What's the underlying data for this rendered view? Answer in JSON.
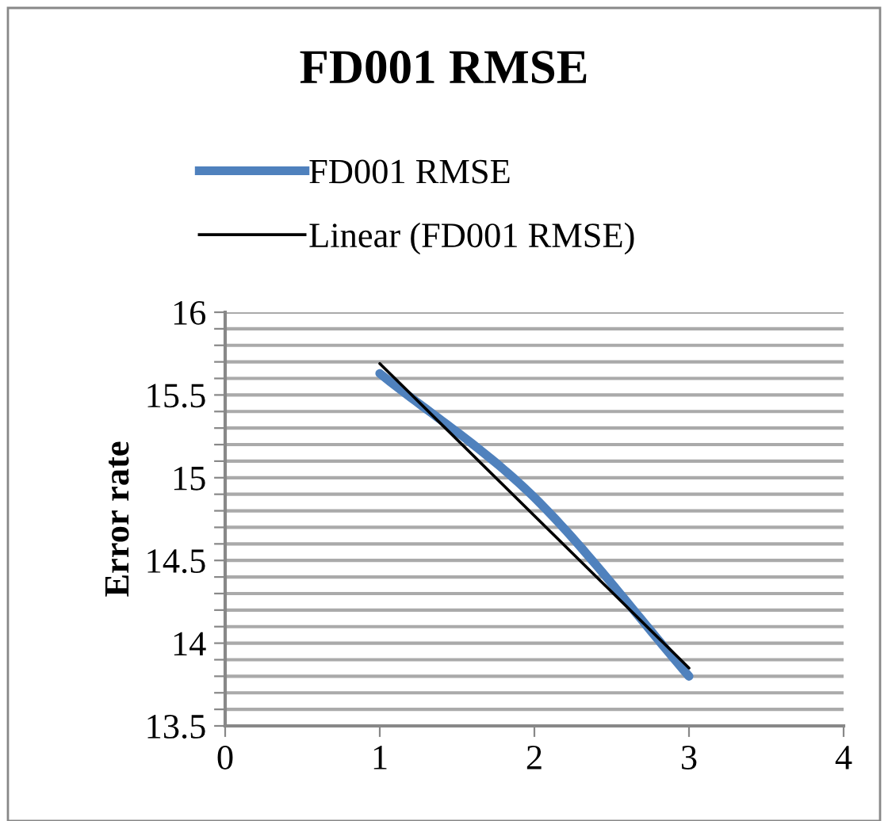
{
  "chart_data": {
    "type": "line",
    "title": "FD001 RMSE",
    "ylabel": "Error rate",
    "series": [
      {
        "name": "FD001 RMSE",
        "color": "#4f81bd",
        "x": [
          1,
          2,
          3
        ],
        "values": [
          15.63,
          14.88,
          13.8
        ]
      },
      {
        "name": "Linear (FD001 RMSE)",
        "color": "#000000",
        "x": [
          1,
          3
        ],
        "values": [
          15.69,
          13.85
        ]
      }
    ],
    "xlim": [
      0,
      4
    ],
    "xticks": [
      0,
      1,
      2,
      3,
      4
    ],
    "ylim": [
      13.5,
      16
    ],
    "yticks": [
      13.5,
      {
        "value": 13.6,
        "label": null
      },
      {
        "value": 13.7,
        "label": null
      },
      {
        "value": 13.8,
        "label": null
      },
      {
        "value": 13.9,
        "label": null
      },
      14,
      {
        "value": 14.1,
        "label": null
      },
      {
        "value": 14.2,
        "label": null
      },
      {
        "value": 14.3,
        "label": null
      },
      {
        "value": 14.4,
        "label": null
      },
      14.5,
      {
        "value": 14.6,
        "label": null
      },
      {
        "value": 14.7,
        "label": null
      },
      {
        "value": 14.8,
        "label": null
      },
      {
        "value": 14.9,
        "label": null
      },
      15,
      {
        "value": 15.1,
        "label": null
      },
      {
        "value": 15.2,
        "label": null
      },
      {
        "value": 15.3,
        "label": null
      },
      {
        "value": 15.4,
        "label": null
      },
      15.5,
      {
        "value": 15.6,
        "label": null
      },
      {
        "value": 15.7,
        "label": null
      },
      {
        "value": 15.8,
        "label": null
      },
      {
        "value": 15.9,
        "label": null
      },
      16
    ],
    "grid": "y",
    "legend": "top",
    "marker": "none",
    "line_style": "solid"
  }
}
